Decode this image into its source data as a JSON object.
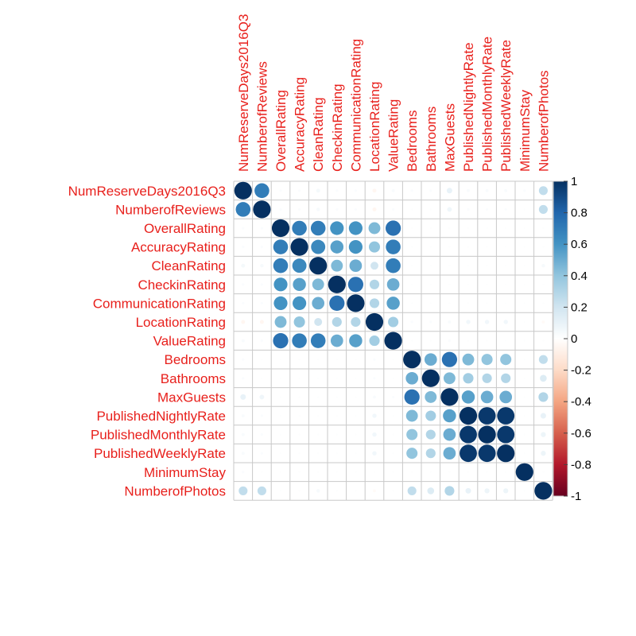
{
  "chart_data": {
    "type": "heatmap",
    "title": "",
    "labels": [
      "NumReserveDays2016Q3",
      "NumberofReviews",
      "OverallRating",
      "AccuracyRating",
      "CleanRating",
      "CheckinRating",
      "CommunicationRating",
      "LocationRating",
      "ValueRating",
      "Bedrooms",
      "Bathrooms",
      "MaxGuests",
      "PublishedNightlyRate",
      "PublishedMonthlyRate",
      "PublishedWeeklyRate",
      "MinimumStay",
      "NumberofPhotos"
    ],
    "matrix": [
      [
        1,
        0.7,
        0.02,
        0.02,
        0.05,
        0.02,
        0.02,
        -0.05,
        0.03,
        0.02,
        0.02,
        0.1,
        0.03,
        0.03,
        0.03,
        0.02,
        0.25
      ],
      [
        0.7,
        1,
        0.02,
        0.02,
        0.04,
        0.02,
        0.02,
        -0.05,
        0.02,
        0.01,
        0.01,
        0.07,
        0.02,
        0.02,
        0.02,
        0.01,
        0.25
      ],
      [
        0.02,
        0.02,
        1,
        0.7,
        0.7,
        0.6,
        0.6,
        0.45,
        0.75,
        0.01,
        0.01,
        0.01,
        0.01,
        0.01,
        0.01,
        0.01,
        0.01
      ],
      [
        0.02,
        0.02,
        0.7,
        1,
        0.65,
        0.55,
        0.6,
        0.4,
        0.7,
        0.01,
        0.01,
        0.01,
        0.01,
        0.01,
        0.01,
        0.01,
        0.01
      ],
      [
        0.05,
        0.04,
        0.7,
        0.65,
        1,
        0.45,
        0.5,
        0.2,
        0.7,
        0.01,
        0.01,
        0.01,
        0.01,
        0.01,
        0.01,
        0.01,
        0.04
      ],
      [
        0.02,
        0.02,
        0.6,
        0.55,
        0.45,
        1,
        0.75,
        0.3,
        0.5,
        0.01,
        0.01,
        0.01,
        0.01,
        0.01,
        0.01,
        0.01,
        0.01
      ],
      [
        0.02,
        0.02,
        0.6,
        0.6,
        0.5,
        0.75,
        1,
        0.3,
        0.55,
        0.01,
        0.01,
        0.01,
        0.01,
        0.01,
        0.01,
        0.01,
        0.01
      ],
      [
        -0.05,
        -0.05,
        0.45,
        0.4,
        0.2,
        0.3,
        0.3,
        1,
        0.35,
        0.02,
        0.02,
        0.03,
        0.06,
        0.06,
        0.06,
        0.01,
        -0.03
      ],
      [
        0.03,
        0.02,
        0.75,
        0.7,
        0.7,
        0.5,
        0.55,
        0.35,
        1,
        0.01,
        0.01,
        0.02,
        0.01,
        0.01,
        0.01,
        0.01,
        0.01
      ],
      [
        0.02,
        0.01,
        0.01,
        0.01,
        0.01,
        0.01,
        0.01,
        0.02,
        0.01,
        1,
        0.5,
        0.75,
        0.45,
        0.4,
        0.4,
        0.01,
        0.25
      ],
      [
        0.02,
        0.01,
        0.01,
        0.01,
        0.01,
        0.01,
        0.01,
        0.02,
        0.01,
        0.5,
        1,
        0.45,
        0.35,
        0.3,
        0.3,
        0.01,
        0.15
      ],
      [
        0.1,
        0.07,
        0.01,
        0.01,
        0.01,
        0.01,
        0.01,
        0.03,
        0.02,
        0.75,
        0.45,
        1,
        0.55,
        0.5,
        0.5,
        0.01,
        0.3
      ],
      [
        0.03,
        0.02,
        0.01,
        0.01,
        0.01,
        0.01,
        0.01,
        0.06,
        0.01,
        0.45,
        0.35,
        0.55,
        1,
        0.97,
        0.97,
        0.01,
        0.1
      ],
      [
        0.03,
        0.02,
        0.01,
        0.01,
        0.01,
        0.01,
        0.01,
        0.06,
        0.01,
        0.4,
        0.3,
        0.5,
        0.97,
        1,
        0.97,
        0.01,
        0.08
      ],
      [
        0.03,
        0.02,
        0.01,
        0.01,
        0.01,
        0.01,
        0.01,
        0.06,
        0.01,
        0.4,
        0.3,
        0.5,
        0.97,
        0.97,
        1,
        0.01,
        0.08
      ],
      [
        0.02,
        0.01,
        0.01,
        0.01,
        0.01,
        0.01,
        0.01,
        0.01,
        0.01,
        0.01,
        0.01,
        0.01,
        0.01,
        0.01,
        0.01,
        1,
        0.01
      ],
      [
        0.25,
        0.25,
        0.01,
        0.01,
        0.04,
        0.01,
        0.01,
        -0.03,
        0.01,
        0.25,
        0.15,
        0.3,
        0.1,
        0.08,
        0.08,
        0.01,
        1
      ]
    ],
    "colorbar": {
      "range": [
        -1,
        1
      ],
      "ticks": [
        "1",
        "0.8",
        "0.6",
        "0.4",
        "0.2",
        "0",
        "-0.2",
        "-0.4",
        "-0.6",
        "-0.8",
        "-1"
      ],
      "stops": [
        "#67001f",
        "#b2182b",
        "#d6604d",
        "#f4a582",
        "#fddbc7",
        "#ffffff",
        "#d1e5f0",
        "#92c5de",
        "#4393c3",
        "#2166ac",
        "#053061"
      ],
      "placement": "right"
    },
    "label_color": "#e8201c",
    "grid": true,
    "shape": "circle"
  }
}
